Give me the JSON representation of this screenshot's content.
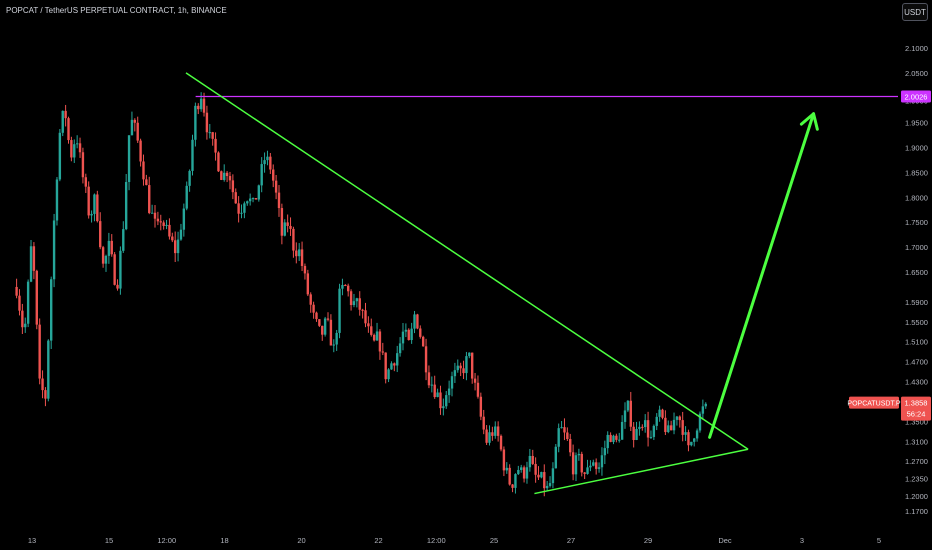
{
  "header": {
    "title": "POPCAT / TetherUS PERPETUAL CONTRACT, 1h, BINANCE",
    "currency": "USDT"
  },
  "colors": {
    "up": "#26a69a",
    "down": "#ef5350",
    "trendline": "#4cff40",
    "resistance": "#cc33ff",
    "axis_text": "#b2b5be",
    "background": "#000000"
  },
  "chart_data": {
    "type": "candlestick",
    "symbol": "POPCATUSDT.P",
    "ylim": [
      1.145,
      2.14
    ],
    "y_ticks": [
      2.1,
      2.05,
      1.995,
      1.95,
      1.9,
      1.85,
      1.8,
      1.75,
      1.7,
      1.65,
      1.59,
      1.55,
      1.51,
      1.47,
      1.43,
      1.39,
      1.35,
      1.31,
      1.27,
      1.235,
      1.2,
      1.17
    ],
    "y_tick_labels": [
      "2.1000",
      "2.0500",
      "1.9950",
      "1.9500",
      "1.9000",
      "1.8500",
      "1.8000",
      "1.7500",
      "1.7000",
      "1.6500",
      "1.5900",
      "1.5500",
      "1.5100",
      "1.4700",
      "1.4300",
      "1.3900",
      "1.3500",
      "1.3100",
      "1.2700",
      "1.2350",
      "1.2000",
      "1.1700"
    ],
    "x_range": [
      12.6,
      5.6
    ],
    "x_ticks": [
      {
        "label": "13",
        "t": 13
      },
      {
        "label": "15",
        "t": 15
      },
      {
        "label": "12:00",
        "t": 16.5
      },
      {
        "label": "18",
        "t": 18
      },
      {
        "label": "20",
        "t": 20
      },
      {
        "label": "22",
        "t": 22
      },
      {
        "label": "12:00",
        "t": 23.5
      },
      {
        "label": "25",
        "t": 25
      },
      {
        "label": "27",
        "t": 27
      },
      {
        "label": "29",
        "t": 29
      },
      {
        "label": "Dec",
        "t": 31
      },
      {
        "label": "3",
        "t": 33
      },
      {
        "label": "5",
        "t": 35
      }
    ],
    "x_axis_note": "t = day number counted from Nov (values > 30 are Dec 1, 3, 5)",
    "price_path": [
      [
        12.6,
        1.62
      ],
      [
        12.8,
        1.52
      ],
      [
        13.0,
        1.72
      ],
      [
        13.2,
        1.42
      ],
      [
        13.35,
        1.4
      ],
      [
        13.55,
        1.72
      ],
      [
        13.7,
        1.92
      ],
      [
        13.85,
        1.98
      ],
      [
        14.0,
        1.88
      ],
      [
        14.15,
        1.93
      ],
      [
        14.3,
        1.85
      ],
      [
        14.5,
        1.76
      ],
      [
        14.65,
        1.8
      ],
      [
        14.85,
        1.66
      ],
      [
        15.0,
        1.7
      ],
      [
        15.2,
        1.62
      ],
      [
        15.35,
        1.72
      ],
      [
        15.55,
        1.96
      ],
      [
        15.7,
        1.93
      ],
      [
        15.9,
        1.85
      ],
      [
        16.05,
        1.78
      ],
      [
        16.25,
        1.73
      ],
      [
        16.35,
        1.76
      ],
      [
        16.55,
        1.72
      ],
      [
        16.75,
        1.69
      ],
      [
        16.9,
        1.76
      ],
      [
        17.05,
        1.82
      ],
      [
        17.25,
        1.98
      ],
      [
        17.4,
        2.01
      ],
      [
        17.6,
        1.92
      ],
      [
        17.8,
        1.88
      ],
      [
        17.95,
        1.84
      ],
      [
        18.1,
        1.86
      ],
      [
        18.25,
        1.8
      ],
      [
        18.4,
        1.77
      ],
      [
        18.55,
        1.81
      ],
      [
        18.75,
        1.78
      ],
      [
        18.9,
        1.83
      ],
      [
        19.05,
        1.88
      ],
      [
        19.2,
        1.86
      ],
      [
        19.35,
        1.8
      ],
      [
        19.5,
        1.72
      ],
      [
        19.65,
        1.75
      ],
      [
        19.8,
        1.7
      ],
      [
        19.95,
        1.69
      ],
      [
        20.1,
        1.63
      ],
      [
        20.3,
        1.56
      ],
      [
        20.5,
        1.52
      ],
      [
        20.65,
        1.55
      ],
      [
        20.85,
        1.49
      ],
      [
        21.0,
        1.61
      ],
      [
        21.15,
        1.62
      ],
      [
        21.3,
        1.59
      ],
      [
        21.5,
        1.58
      ],
      [
        21.65,
        1.55
      ],
      [
        21.85,
        1.5
      ],
      [
        22.0,
        1.52
      ],
      [
        22.2,
        1.44
      ],
      [
        22.35,
        1.47
      ],
      [
        22.5,
        1.49
      ],
      [
        22.65,
        1.53
      ],
      [
        22.8,
        1.5
      ],
      [
        22.95,
        1.57
      ],
      [
        23.1,
        1.52
      ],
      [
        23.3,
        1.44
      ],
      [
        23.5,
        1.41
      ],
      [
        23.65,
        1.38
      ],
      [
        23.8,
        1.42
      ],
      [
        23.95,
        1.44
      ],
      [
        24.15,
        1.45
      ],
      [
        24.35,
        1.48
      ],
      [
        24.5,
        1.42
      ],
      [
        24.65,
        1.36
      ],
      [
        24.8,
        1.31
      ],
      [
        24.95,
        1.33
      ],
      [
        25.1,
        1.32
      ],
      [
        25.3,
        1.25
      ],
      [
        25.45,
        1.22
      ],
      [
        25.6,
        1.26
      ],
      [
        25.75,
        1.24
      ],
      [
        25.9,
        1.28
      ],
      [
        26.05,
        1.24
      ],
      [
        26.25,
        1.23
      ],
      [
        26.4,
        1.21
      ],
      [
        26.55,
        1.25
      ],
      [
        26.7,
        1.34
      ],
      [
        26.9,
        1.31
      ],
      [
        27.05,
        1.26
      ],
      [
        27.2,
        1.27
      ],
      [
        27.4,
        1.24
      ],
      [
        27.55,
        1.28
      ],
      [
        27.7,
        1.25
      ],
      [
        27.85,
        1.29
      ],
      [
        28.0,
        1.33
      ],
      [
        28.15,
        1.3
      ],
      [
        28.35,
        1.35
      ],
      [
        28.5,
        1.38
      ],
      [
        28.65,
        1.31
      ],
      [
        28.8,
        1.36
      ],
      [
        28.95,
        1.34
      ],
      [
        29.1,
        1.31
      ],
      [
        29.25,
        1.36
      ],
      [
        29.4,
        1.35
      ],
      [
        29.55,
        1.32
      ],
      [
        29.75,
        1.37
      ],
      [
        29.9,
        1.34
      ],
      [
        30.05,
        1.29
      ],
      [
        30.2,
        1.33
      ],
      [
        30.35,
        1.36
      ],
      [
        30.5,
        1.3853
      ]
    ],
    "candles_shown": 240,
    "last_price": "1.3858",
    "countdown": "56:24",
    "annotations": {
      "resistance_line": {
        "y": 2.0026,
        "from_t": 17.25,
        "label": "2.0026"
      },
      "descending_trendline": {
        "from": [
          17.0,
          2.05
        ],
        "to": [
          31.6,
          1.294
        ]
      },
      "ascending_trendline": {
        "from": [
          26.05,
          1.205
        ],
        "to": [
          31.6,
          1.294
        ]
      },
      "arrow": {
        "from": [
          30.6,
          1.318
        ],
        "to": [
          33.3,
          1.968
        ]
      }
    }
  }
}
